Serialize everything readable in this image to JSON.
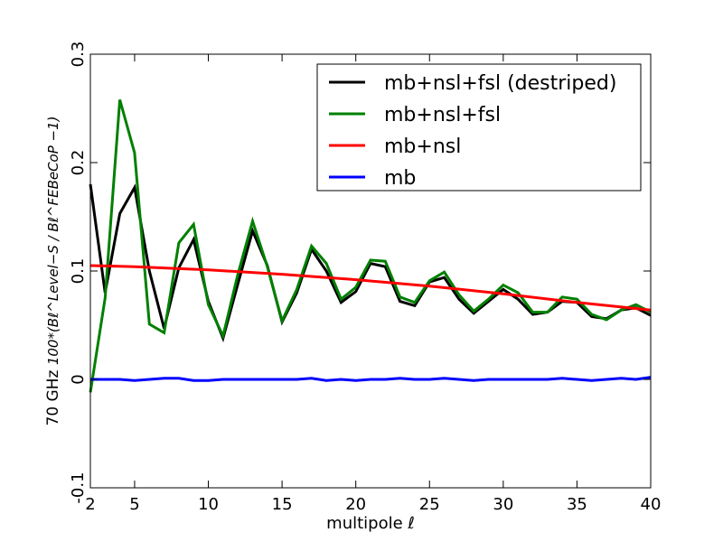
{
  "chart_data": {
    "type": "line",
    "title": "",
    "xlabel": "multipole ℓ",
    "ylabel": "70 GHz 100*(Bℓ^{Level−S}/Bℓ^{FEBeCoP}−1)",
    "ylabel_prefix": "70 GHz ",
    "ylabel_math": "100*(Bℓ^Level−S / Bℓ^FEBeCoP −1)",
    "xlim": [
      2,
      40
    ],
    "ylim": [
      -0.1,
      0.3
    ],
    "grid": false,
    "legend_position": "top-right",
    "x_ticks": [
      {
        "value": 2,
        "label": "2"
      },
      {
        "value": 5,
        "label": "5"
      },
      {
        "value": 10,
        "label": "10"
      },
      {
        "value": 15,
        "label": "15"
      },
      {
        "value": 20,
        "label": "20"
      },
      {
        "value": 25,
        "label": "25"
      },
      {
        "value": 30,
        "label": "30"
      },
      {
        "value": 35,
        "label": "35"
      },
      {
        "value": 40,
        "label": "40"
      }
    ],
    "y_ticks": [
      {
        "value": -0.1,
        "label": "-0.1"
      },
      {
        "value": 0.0,
        "label": "0"
      },
      {
        "value": 0.1,
        "label": "0.1"
      },
      {
        "value": 0.2,
        "label": "0.2"
      },
      {
        "value": 0.3,
        "label": "0.3"
      }
    ],
    "series": [
      {
        "name": "mb+nsl+fsl (destriped)",
        "color": "#000000",
        "x": [
          2,
          3,
          4,
          5,
          6,
          7,
          8,
          9,
          10,
          11,
          12,
          13,
          14,
          15,
          16,
          17,
          18,
          19,
          20,
          21,
          22,
          23,
          24,
          25,
          26,
          27,
          28,
          29,
          30,
          31,
          32,
          33,
          34,
          35,
          36,
          37,
          38,
          39,
          40
        ],
        "y": [
          0.18,
          0.08,
          0.153,
          0.177,
          0.1,
          0.047,
          0.103,
          0.129,
          0.072,
          0.038,
          0.088,
          0.137,
          0.105,
          0.053,
          0.08,
          0.12,
          0.1,
          0.071,
          0.081,
          0.107,
          0.104,
          0.072,
          0.068,
          0.09,
          0.094,
          0.074,
          0.061,
          0.072,
          0.083,
          0.074,
          0.06,
          0.062,
          0.072,
          0.071,
          0.058,
          0.056,
          0.064,
          0.066,
          0.059
        ]
      },
      {
        "name": "mb+nsl+fsl",
        "color": "#008000",
        "x": [
          2,
          3,
          4,
          5,
          6,
          7,
          8,
          9,
          10,
          11,
          12,
          13,
          14,
          15,
          16,
          17,
          18,
          19,
          20,
          21,
          22,
          23,
          24,
          25,
          26,
          27,
          28,
          29,
          30,
          31,
          32,
          33,
          34,
          35,
          36,
          37,
          38,
          39,
          40
        ],
        "y": [
          -0.012,
          0.075,
          0.258,
          0.209,
          0.051,
          0.043,
          0.126,
          0.143,
          0.069,
          0.04,
          0.097,
          0.146,
          0.104,
          0.054,
          0.083,
          0.123,
          0.107,
          0.074,
          0.085,
          0.11,
          0.109,
          0.076,
          0.071,
          0.091,
          0.099,
          0.078,
          0.063,
          0.074,
          0.087,
          0.08,
          0.062,
          0.062,
          0.076,
          0.074,
          0.06,
          0.055,
          0.064,
          0.069,
          0.062
        ]
      },
      {
        "name": "mb+nsl",
        "color": "#ff0000",
        "x": [
          2,
          5,
          10,
          15,
          20,
          25,
          30,
          35,
          40
        ],
        "y": [
          0.105,
          0.104,
          0.101,
          0.097,
          0.092,
          0.086,
          0.079,
          0.071,
          0.064
        ]
      },
      {
        "name": "mb",
        "color": "#0000ff",
        "x": [
          2,
          3,
          4,
          5,
          6,
          7,
          8,
          9,
          10,
          11,
          12,
          13,
          14,
          15,
          16,
          17,
          18,
          19,
          20,
          21,
          22,
          23,
          24,
          25,
          26,
          27,
          28,
          29,
          30,
          31,
          32,
          33,
          34,
          35,
          36,
          37,
          38,
          39,
          40
        ],
        "y": [
          0.0,
          0.0,
          0.0,
          -0.001,
          0.0,
          0.001,
          0.001,
          -0.001,
          -0.001,
          0.0,
          0.0,
          0.0,
          0.0,
          0.0,
          0.0,
          0.001,
          -0.001,
          0.0,
          -0.001,
          0.0,
          0.0,
          0.001,
          0.0,
          0.0,
          0.001,
          0.0,
          -0.001,
          0.0,
          0.0,
          0.0,
          0.0,
          0.0,
          0.001,
          0.0,
          -0.001,
          0.0,
          0.001,
          0.0,
          0.002
        ]
      }
    ]
  }
}
